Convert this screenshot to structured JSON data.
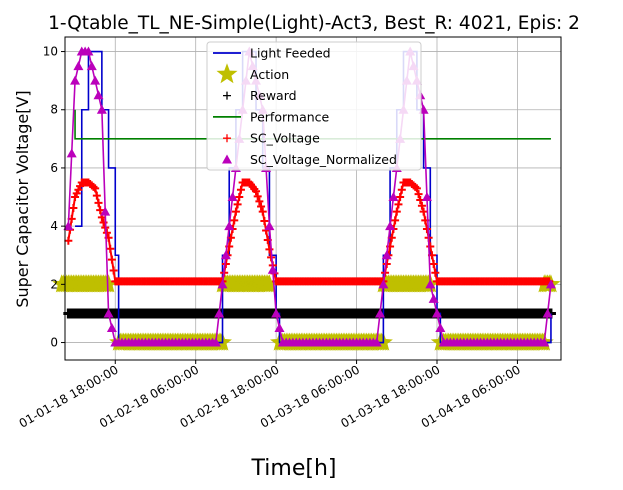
{
  "chart_data": {
    "type": "line",
    "title": "1-Qtable_TL_NE-Simple(Light)-Act3, Best_R: 4021, Epis: 2",
    "xlabel": "Time[h]",
    "ylabel": "Super Capacitor Voltage[V]",
    "xlim": [
      "2018-01-01 10:30",
      "2018-01-04 12:30"
    ],
    "ylim": [
      -0.6,
      10.5
    ],
    "x_ticks": [
      "01-01-18 18:00:00",
      "01-02-18 06:00:00",
      "01-02-18 18:00:00",
      "01-03-18 06:00:00",
      "01-03-18 18:00:00",
      "01-04-18 06:00:00"
    ],
    "y_ticks": [
      "0",
      "2",
      "4",
      "6",
      "8",
      "10"
    ],
    "grid": true,
    "legend": "top-center",
    "series": [
      {
        "name": "Light Feeded",
        "color": "#0000cc",
        "style": "step",
        "x": [
          "2018-01-01 12:00",
          "2018-01-01 13:00",
          "2018-01-01 14:00",
          "2018-01-01 15:00",
          "2018-01-01 16:00",
          "2018-01-01 17:00",
          "2018-01-01 18:00",
          "2018-01-01 18:30",
          "2018-01-02 10:00",
          "2018-01-02 11:00",
          "2018-01-02 12:00",
          "2018-01-02 13:00",
          "2018-01-02 14:00",
          "2018-01-02 15:00",
          "2018-01-02 16:00",
          "2018-01-02 17:00",
          "2018-01-02 18:00",
          "2018-01-02 18:30",
          "2018-01-03 10:00",
          "2018-01-03 11:00",
          "2018-01-03 12:00",
          "2018-01-03 13:00",
          "2018-01-03 14:00",
          "2018-01-03 15:00",
          "2018-01-03 16:00",
          "2018-01-03 17:00",
          "2018-01-03 18:00",
          "2018-01-03 18:30",
          "2018-01-04 10:00",
          "2018-01-04 11:00"
        ],
        "y": [
          4,
          8,
          10,
          10,
          8,
          6,
          3,
          0,
          3,
          6,
          8,
          10,
          10,
          8,
          6,
          3,
          1,
          0,
          3,
          6,
          8,
          10,
          10,
          8,
          6,
          3,
          1,
          0,
          0,
          1
        ]
      },
      {
        "name": "Action",
        "color": "#bfbf00",
        "marker": "star",
        "segments": [
          {
            "x_start": "2018-01-01 10:00",
            "x_end": "2018-01-01 17:00",
            "y": 2
          },
          {
            "x_start": "2018-01-01 18:30",
            "x_end": "2018-01-02 10:00",
            "y": 0
          },
          {
            "x_start": "2018-01-02 10:00",
            "x_end": "2018-01-02 17:00",
            "y": 2
          },
          {
            "x_start": "2018-01-02 18:30",
            "x_end": "2018-01-03 10:00",
            "y": 0
          },
          {
            "x_start": "2018-01-03 10:00",
            "x_end": "2018-01-03 17:00",
            "y": 2
          },
          {
            "x_start": "2018-01-03 18:30",
            "x_end": "2018-01-04 10:00",
            "y": 0
          },
          {
            "x_start": "2018-01-04 10:00",
            "x_end": "2018-01-04 11:00",
            "y": 2
          }
        ]
      },
      {
        "name": "Reward",
        "color": "#000000",
        "marker": "plus",
        "x_start": "2018-01-01 11:00",
        "x_end": "2018-01-04 11:00",
        "y": 1
      },
      {
        "name": "Performance",
        "color": "#008000",
        "style": "line",
        "x": [
          "2018-01-01 12:00",
          "2018-01-01 12:00",
          "2018-01-04 11:00"
        ],
        "y": [
          8,
          7,
          7
        ]
      },
      {
        "name": "SC_Voltage",
        "color": "#ff0000",
        "marker": "plus",
        "x": [
          "2018-01-01 11:00",
          "2018-01-01 12:00",
          "2018-01-01 13:00",
          "2018-01-01 14:00",
          "2018-01-01 15:00",
          "2018-01-01 16:00",
          "2018-01-01 17:00",
          "2018-01-01 18:00",
          "2018-01-02 10:00",
          "2018-01-02 11:00",
          "2018-01-02 12:00",
          "2018-01-02 13:00",
          "2018-01-02 14:00",
          "2018-01-02 15:00",
          "2018-01-02 16:00",
          "2018-01-02 17:00",
          "2018-01-02 18:00",
          "2018-01-03 10:00",
          "2018-01-03 11:00",
          "2018-01-03 12:00",
          "2018-01-03 13:00",
          "2018-01-03 14:00",
          "2018-01-03 15:00",
          "2018-01-03 16:00",
          "2018-01-03 17:00",
          "2018-01-03 18:00",
          "2018-01-04 11:00"
        ],
        "y": [
          3.5,
          5.0,
          5.5,
          5.5,
          5.3,
          4.3,
          3.6,
          2.1,
          2.1,
          3.3,
          4.5,
          5.5,
          5.5,
          5.2,
          4.5,
          3.2,
          2.1,
          2.1,
          3.3,
          4.5,
          5.5,
          5.5,
          5.3,
          4.5,
          3.3,
          2.1,
          2.1
        ]
      },
      {
        "name": "SC_Voltage_Normalized",
        "color": "#bb00bb",
        "marker": "triangle",
        "x": [
          "2018-01-01 11:00",
          "2018-01-01 12:00",
          "2018-01-01 13:00",
          "2018-01-01 14:00",
          "2018-01-01 15:00",
          "2018-01-01 16:00",
          "2018-01-01 17:00",
          "2018-01-01 18:00",
          "2018-01-01 19:00",
          "2018-01-02 09:00",
          "2018-01-02 10:00",
          "2018-01-02 11:00",
          "2018-01-02 12:00",
          "2018-01-02 13:00",
          "2018-01-02 14:00",
          "2018-01-02 15:00",
          "2018-01-02 16:00",
          "2018-01-02 17:00",
          "2018-01-02 18:00",
          "2018-01-02 19:00",
          "2018-01-03 09:00",
          "2018-01-03 10:00",
          "2018-01-03 11:00",
          "2018-01-03 12:00",
          "2018-01-03 13:00",
          "2018-01-03 14:00",
          "2018-01-03 15:00",
          "2018-01-03 16:00",
          "2018-01-03 17:00",
          "2018-01-03 18:00",
          "2018-01-03 19:00",
          "2018-01-04 10:00",
          "2018-01-04 11:00"
        ],
        "y": [
          4,
          9,
          10,
          10,
          9,
          8,
          1,
          0,
          0,
          0,
          2,
          4,
          6,
          8,
          10,
          9,
          8,
          4,
          1,
          0,
          0,
          2,
          4,
          6,
          8,
          10,
          9,
          8,
          2,
          1,
          0,
          0,
          2
        ]
      }
    ]
  }
}
